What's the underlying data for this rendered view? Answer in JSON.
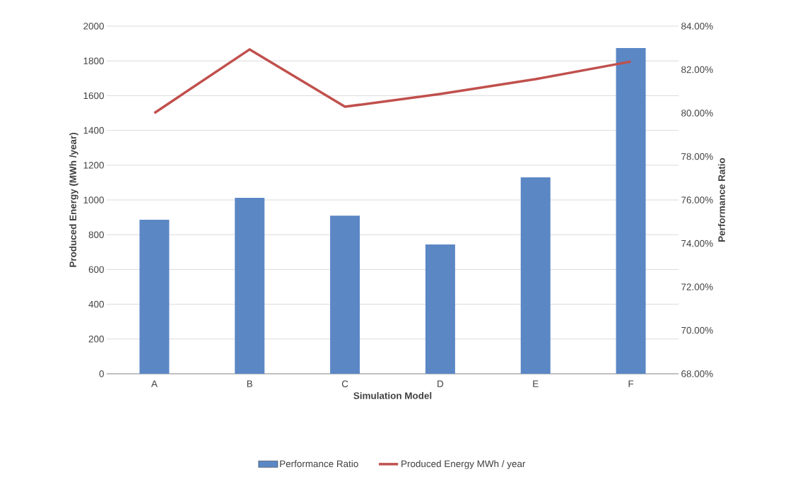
{
  "chart_data": {
    "type": "bar",
    "xlabel": "Simulation Model",
    "ylabel": "Produced Energy (MWh /year)",
    "y2label": "Performance Ratio",
    "categories": [
      "A",
      "B",
      "C",
      "D",
      "E",
      "F"
    ],
    "series": [
      {
        "name": "Performance Ratio",
        "color": "#5b87c5",
        "values": [
          886,
          1012,
          910,
          744,
          1130,
          1874
        ]
      },
      {
        "name": "Produced Energy MWh / year",
        "type": "line",
        "axis": "y2",
        "color": "#c0504d",
        "values": [
          80.0,
          82.93,
          80.29,
          80.88,
          81.56,
          82.37
        ]
      }
    ],
    "ylim": [
      0,
      2000
    ],
    "yticks": [
      0,
      200,
      400,
      600,
      800,
      1000,
      1200,
      1400,
      1600,
      1800,
      2000
    ],
    "y2lim": [
      68,
      84
    ],
    "y2ticks": [
      {
        "value": 68,
        "label": "68.00%"
      },
      {
        "value": 70,
        "label": "70.00%"
      },
      {
        "value": 72,
        "label": "72.00%"
      },
      {
        "value": 74,
        "label": "74.00%"
      },
      {
        "value": 76,
        "label": "76.00%"
      },
      {
        "value": 78,
        "label": "78.00%"
      },
      {
        "value": 80,
        "label": "80.00%"
      },
      {
        "value": 82,
        "label": "82.00%"
      },
      {
        "value": 84,
        "label": "84.00%"
      }
    ],
    "grid": "y",
    "legend": "bottom"
  }
}
